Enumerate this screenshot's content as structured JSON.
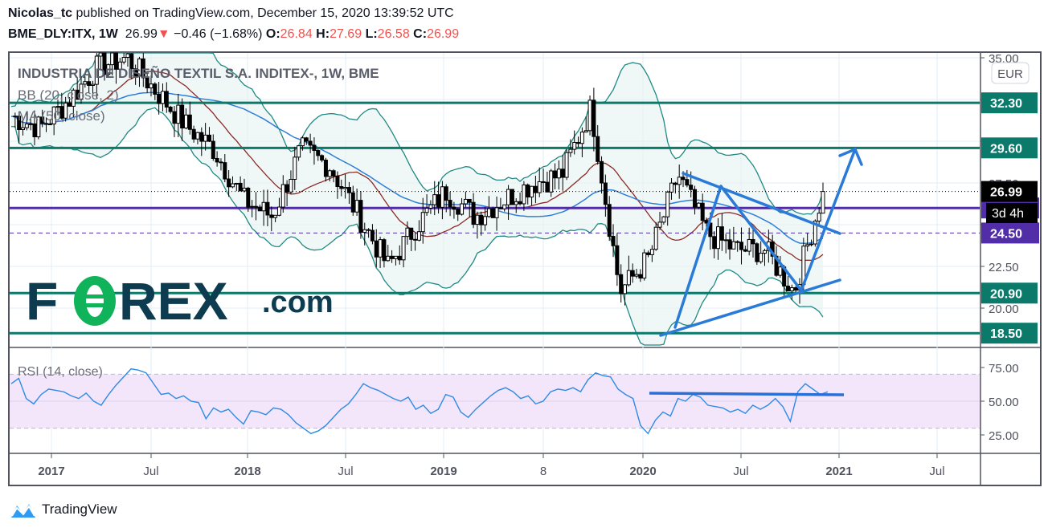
{
  "header": {
    "author": "Nicolas_tc",
    "published": "published on TradingView.com, December 15, 2020 13:39:52 UTC",
    "symbol": "BME_DLY:ITX, 1W",
    "last": "26.99",
    "change": "−0.46 (−1.68%)",
    "o_label": "O:",
    "o": "26.84",
    "h_label": "H:",
    "h": "27.69",
    "l_label": "L:",
    "l": "26.58",
    "c_label": "C:",
    "c": "26.99",
    "down_color": "#ef5350"
  },
  "chart": {
    "title": "INDUSTRIA DE DISEÑO TEXTIL S.A. INDITEX-, 1W, BME",
    "indicator_bb": "BB (20, close, 2)",
    "indicator_ma": "MA (50, close)",
    "currency": "EUR",
    "rsi_label": "RSI (14, close)",
    "countdown": "3d 4h",
    "watermark": {
      "main_left": "F",
      "main_o": "O",
      "main_right": "REX",
      "suffix": ".com"
    }
  },
  "footer": {
    "brand": "TradingView"
  },
  "chart_data": [
    {
      "type": "candlestick",
      "title": "INDUSTRIA DE DISEÑO TEXTIL S.A. INDITEX-, 1W, BME",
      "xlabel": "",
      "ylabel": "EUR",
      "x_ticks": [
        "2017",
        "Jul",
        "2018",
        "Jul",
        "2019",
        "8",
        "2020",
        "Jul",
        "2021",
        "Jul"
      ],
      "y_ticks": [
        "35.00",
        "32.50",
        "30.00",
        "27.50",
        "25.00",
        "22.50",
        "20.00"
      ],
      "ylim": [
        17.5,
        35.5
      ],
      "horizontal_levels": [
        {
          "value": 32.3,
          "color": "#0b7a6a",
          "label": "32.30"
        },
        {
          "value": 29.6,
          "color": "#0b7a6a",
          "label": "29.60"
        },
        {
          "value": 26.0,
          "color": "#512da8",
          "label": "26.00"
        },
        {
          "value": 24.5,
          "color": "#512da8",
          "label": "24.50",
          "style": "dashed"
        },
        {
          "value": 20.9,
          "color": "#0b7a6a",
          "label": "20.90"
        },
        {
          "value": 18.5,
          "color": "#0b7a6a",
          "label": "18.50"
        }
      ],
      "last_price": {
        "value": 26.99,
        "label": "26.99"
      },
      "indicators": [
        "BB (20, close, 2)",
        "MA (50, close)"
      ],
      "weekly_close_approx": {
        "x": [
          "2016-11",
          "2017-01",
          "2017-03",
          "2017-05",
          "2017-06",
          "2017-08",
          "2017-10",
          "2017-12",
          "2018-02",
          "2018-04",
          "2018-06",
          "2018-08",
          "2018-10",
          "2018-12",
          "2019-02",
          "2019-04",
          "2019-06",
          "2019-08",
          "2019-10",
          "2019-12",
          "2020-01",
          "2020-03",
          "2020-04",
          "2020-06",
          "2020-07",
          "2020-09",
          "2020-10",
          "2020-11",
          "2020-12"
        ],
        "values": [
          31.5,
          30.8,
          32.5,
          34.5,
          35.0,
          33.0,
          31.0,
          29.5,
          26.5,
          25.5,
          29.5,
          28.5,
          25.5,
          22.5,
          25.0,
          27.0,
          25.5,
          26.5,
          27.5,
          28.0,
          32.0,
          21.0,
          23.0,
          28.0,
          24.5,
          23.5,
          23.5,
          21.0,
          27.0
        ]
      }
    },
    {
      "type": "line",
      "title": "RSI (14, close)",
      "y_ticks": [
        "75.00",
        "50.00",
        "25.00"
      ],
      "ylim": [
        20,
        80
      ],
      "band": [
        30,
        70
      ],
      "trendline_value": 54,
      "values_approx": [
        63,
        67,
        52,
        48,
        55,
        59,
        58,
        57,
        54,
        52,
        56,
        50,
        47,
        55,
        62,
        68,
        74,
        73,
        71,
        63,
        55,
        56,
        52,
        54,
        50,
        49,
        37,
        45,
        42,
        44,
        38,
        33,
        43,
        42,
        40,
        45,
        44,
        40,
        34,
        30,
        26,
        28,
        32,
        38,
        44,
        48,
        55,
        63,
        60,
        58,
        55,
        52,
        50,
        53,
        44,
        47,
        41,
        44,
        55,
        53,
        42,
        38,
        44,
        49,
        54,
        58,
        60,
        57,
        52,
        54,
        48,
        50,
        57,
        59,
        58,
        60,
        57,
        66,
        71,
        69,
        68,
        59,
        55,
        52,
        32,
        26,
        36,
        42,
        39,
        52,
        50,
        55,
        53,
        47,
        46,
        45,
        42,
        44,
        41,
        47,
        44,
        47,
        52,
        46,
        35,
        57,
        63,
        59,
        55,
        57
      ]
    }
  ]
}
